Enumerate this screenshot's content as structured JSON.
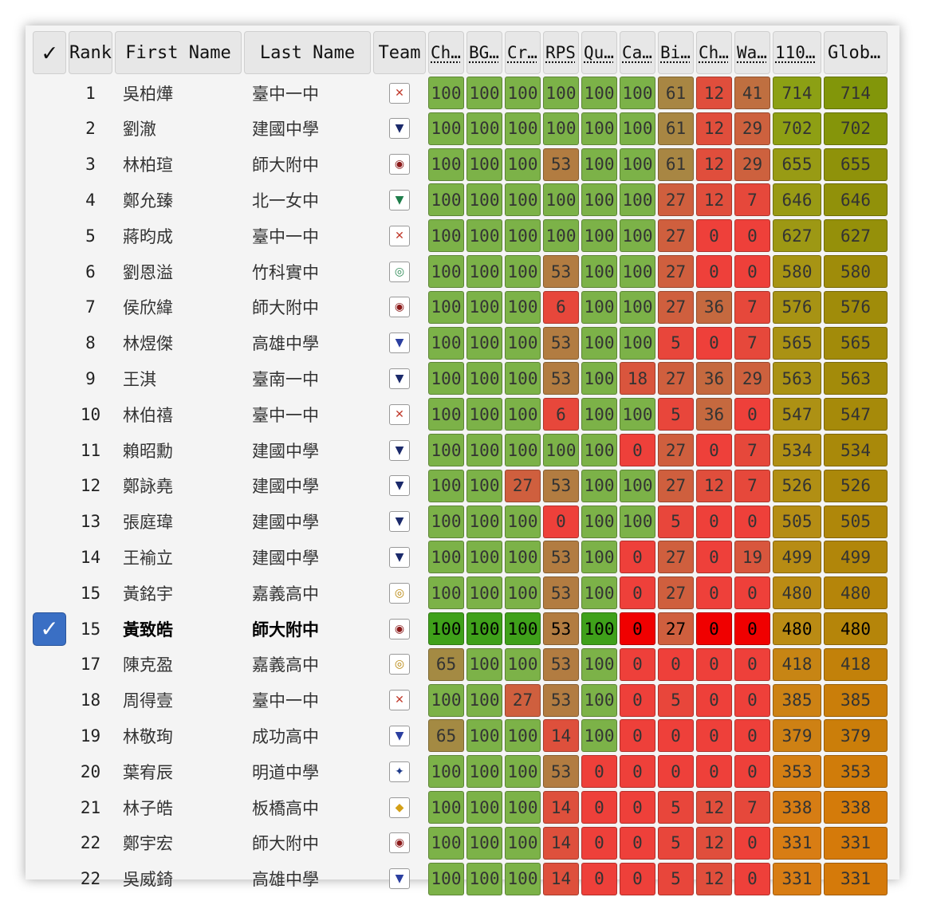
{
  "header": {
    "select_label": "✓",
    "rank_label": "Rank",
    "first_name_label": "First Name",
    "last_name_label": "Last Name",
    "team_label": "Team",
    "problem_labels": [
      "Ch…",
      "BG…",
      "Cr…",
      "RPS",
      "Qu…",
      "Ca…",
      "Bi…",
      "Ch…",
      "Wa…"
    ],
    "total_label": "110…",
    "global_label": "Glob…"
  },
  "logo_colors": {
    "tcfsh": "#c0392b",
    "ck": "#1b2a6b",
    "hsnu": "#8b1a1a",
    "fg": "#1e7d4a",
    "hchs": "#2e8b57",
    "ks": "#2b3fa0",
    "tnfsh": "#1b2a6b",
    "cy": "#b8860b",
    "cg": "#2b3fa0",
    "md": "#1e3a8a",
    "bq": "#d4a017"
  },
  "rows": [
    {
      "rank": "1",
      "first": "吳柏燁",
      "last": "臺中一中",
      "logo": "tcfsh",
      "scores": [
        "100",
        "100",
        "100",
        "100",
        "100",
        "100",
        "61",
        "12",
        "41"
      ],
      "total": "714",
      "global": "714",
      "selected": false
    },
    {
      "rank": "2",
      "first": "劉澈",
      "last": "建國中學",
      "logo": "ck",
      "scores": [
        "100",
        "100",
        "100",
        "100",
        "100",
        "100",
        "61",
        "12",
        "29"
      ],
      "total": "702",
      "global": "702",
      "selected": false
    },
    {
      "rank": "3",
      "first": "林柏瑄",
      "last": "師大附中",
      "logo": "hsnu",
      "scores": [
        "100",
        "100",
        "100",
        "53",
        "100",
        "100",
        "61",
        "12",
        "29"
      ],
      "total": "655",
      "global": "655",
      "selected": false
    },
    {
      "rank": "4",
      "first": "鄭允臻",
      "last": "北一女中",
      "logo": "fg",
      "scores": [
        "100",
        "100",
        "100",
        "100",
        "100",
        "100",
        "27",
        "12",
        "7"
      ],
      "total": "646",
      "global": "646",
      "selected": false
    },
    {
      "rank": "5",
      "first": "蔣昀成",
      "last": "臺中一中",
      "logo": "tcfsh",
      "scores": [
        "100",
        "100",
        "100",
        "100",
        "100",
        "100",
        "27",
        "0",
        "0"
      ],
      "total": "627",
      "global": "627",
      "selected": false
    },
    {
      "rank": "6",
      "first": "劉恩溢",
      "last": "竹科實中",
      "logo": "hchs",
      "scores": [
        "100",
        "100",
        "100",
        "53",
        "100",
        "100",
        "27",
        "0",
        "0"
      ],
      "total": "580",
      "global": "580",
      "selected": false
    },
    {
      "rank": "7",
      "first": "侯欣緯",
      "last": "師大附中",
      "logo": "hsnu",
      "scores": [
        "100",
        "100",
        "100",
        "6",
        "100",
        "100",
        "27",
        "36",
        "7"
      ],
      "total": "576",
      "global": "576",
      "selected": false
    },
    {
      "rank": "8",
      "first": "林煜傑",
      "last": "高雄中學",
      "logo": "ks",
      "scores": [
        "100",
        "100",
        "100",
        "53",
        "100",
        "100",
        "5",
        "0",
        "7"
      ],
      "total": "565",
      "global": "565",
      "selected": false
    },
    {
      "rank": "9",
      "first": "王淇",
      "last": "臺南一中",
      "logo": "tnfsh",
      "scores": [
        "100",
        "100",
        "100",
        "53",
        "100",
        "18",
        "27",
        "36",
        "29"
      ],
      "total": "563",
      "global": "563",
      "selected": false
    },
    {
      "rank": "10",
      "first": "林伯禧",
      "last": "臺中一中",
      "logo": "tcfsh",
      "scores": [
        "100",
        "100",
        "100",
        "6",
        "100",
        "100",
        "5",
        "36",
        "0"
      ],
      "total": "547",
      "global": "547",
      "selected": false
    },
    {
      "rank": "11",
      "first": "賴昭勳",
      "last": "建國中學",
      "logo": "ck",
      "scores": [
        "100",
        "100",
        "100",
        "100",
        "100",
        "0",
        "27",
        "0",
        "7"
      ],
      "total": "534",
      "global": "534",
      "selected": false
    },
    {
      "rank": "12",
      "first": "鄭詠堯",
      "last": "建國中學",
      "logo": "ck",
      "scores": [
        "100",
        "100",
        "27",
        "53",
        "100",
        "100",
        "27",
        "12",
        "7"
      ],
      "total": "526",
      "global": "526",
      "selected": false
    },
    {
      "rank": "13",
      "first": "張庭瑋",
      "last": "建國中學",
      "logo": "ck",
      "scores": [
        "100",
        "100",
        "100",
        "0",
        "100",
        "100",
        "5",
        "0",
        "0"
      ],
      "total": "505",
      "global": "505",
      "selected": false
    },
    {
      "rank": "14",
      "first": "王褕立",
      "last": "建國中學",
      "logo": "ck",
      "scores": [
        "100",
        "100",
        "100",
        "53",
        "100",
        "0",
        "27",
        "0",
        "19"
      ],
      "total": "499",
      "global": "499",
      "selected": false
    },
    {
      "rank": "15",
      "first": "黃銘宇",
      "last": "嘉義高中",
      "logo": "cy",
      "scores": [
        "100",
        "100",
        "100",
        "53",
        "100",
        "0",
        "27",
        "0",
        "0"
      ],
      "total": "480",
      "global": "480",
      "selected": false
    },
    {
      "rank": "15",
      "first": "黃致皓",
      "last": "師大附中",
      "logo": "hsnu",
      "scores": [
        "100",
        "100",
        "100",
        "53",
        "100",
        "0",
        "27",
        "0",
        "0"
      ],
      "total": "480",
      "global": "480",
      "selected": true
    },
    {
      "rank": "17",
      "first": "陳克盈",
      "last": "嘉義高中",
      "logo": "cy",
      "scores": [
        "65",
        "100",
        "100",
        "53",
        "100",
        "0",
        "0",
        "0",
        "0"
      ],
      "total": "418",
      "global": "418",
      "selected": false
    },
    {
      "rank": "18",
      "first": "周得壹",
      "last": "臺中一中",
      "logo": "tcfsh",
      "scores": [
        "100",
        "100",
        "27",
        "53",
        "100",
        "0",
        "5",
        "0",
        "0"
      ],
      "total": "385",
      "global": "385",
      "selected": false
    },
    {
      "rank": "19",
      "first": "林敬珣",
      "last": "成功高中",
      "logo": "cg",
      "scores": [
        "65",
        "100",
        "100",
        "14",
        "100",
        "0",
        "0",
        "0",
        "0"
      ],
      "total": "379",
      "global": "379",
      "selected": false
    },
    {
      "rank": "20",
      "first": "葉宥辰",
      "last": "明道中學",
      "logo": "md",
      "scores": [
        "100",
        "100",
        "100",
        "53",
        "0",
        "0",
        "0",
        "0",
        "0"
      ],
      "total": "353",
      "global": "353",
      "selected": false
    },
    {
      "rank": "21",
      "first": "林子皓",
      "last": "板橋高中",
      "logo": "bq",
      "scores": [
        "100",
        "100",
        "100",
        "14",
        "0",
        "0",
        "5",
        "12",
        "7"
      ],
      "total": "338",
      "global": "338",
      "selected": false
    },
    {
      "rank": "22",
      "first": "鄭宇宏",
      "last": "師大附中",
      "logo": "hsnu",
      "scores": [
        "100",
        "100",
        "100",
        "14",
        "0",
        "0",
        "5",
        "12",
        "0"
      ],
      "total": "331",
      "global": "331",
      "selected": false
    },
    {
      "rank": "22",
      "first": "吳威錡",
      "last": "高雄中學",
      "logo": "ks",
      "scores": [
        "100",
        "100",
        "100",
        "14",
        "0",
        "0",
        "5",
        "12",
        "0"
      ],
      "total": "331",
      "global": "331",
      "selected": false
    }
  ]
}
